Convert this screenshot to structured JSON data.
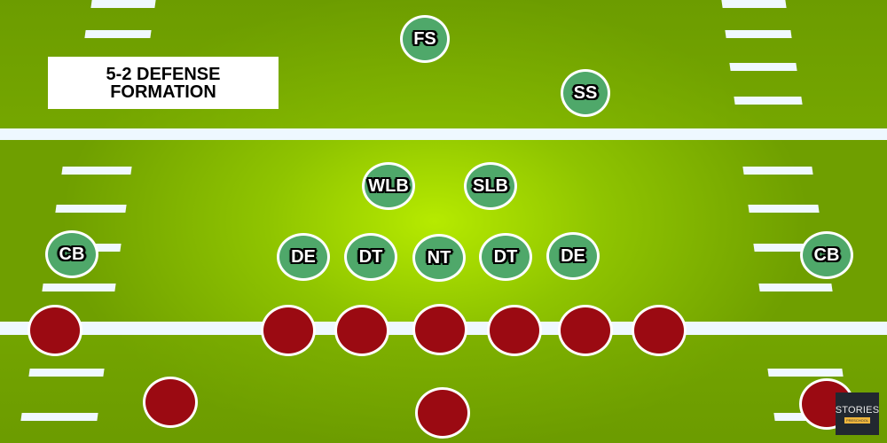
{
  "title": "5-2 DEFENSE FORMATION",
  "title_line1": "5-2 DEFENSE",
  "title_line2": "FORMATION",
  "defense": [
    {
      "label": "FS"
    },
    {
      "label": "SS"
    },
    {
      "label": "WLB"
    },
    {
      "label": "SLB"
    },
    {
      "label": "CB"
    },
    {
      "label": "DE"
    },
    {
      "label": "DT"
    },
    {
      "label": "NT"
    },
    {
      "label": "DT"
    },
    {
      "label": "DE"
    },
    {
      "label": "CB"
    }
  ],
  "offense_count": 10,
  "colors": {
    "defense": "#4fa86a",
    "offense": "#9b0a12",
    "field": "#8fc400"
  },
  "logo": {
    "text": "STORIES",
    "subtext": "PRESCHOOL"
  }
}
